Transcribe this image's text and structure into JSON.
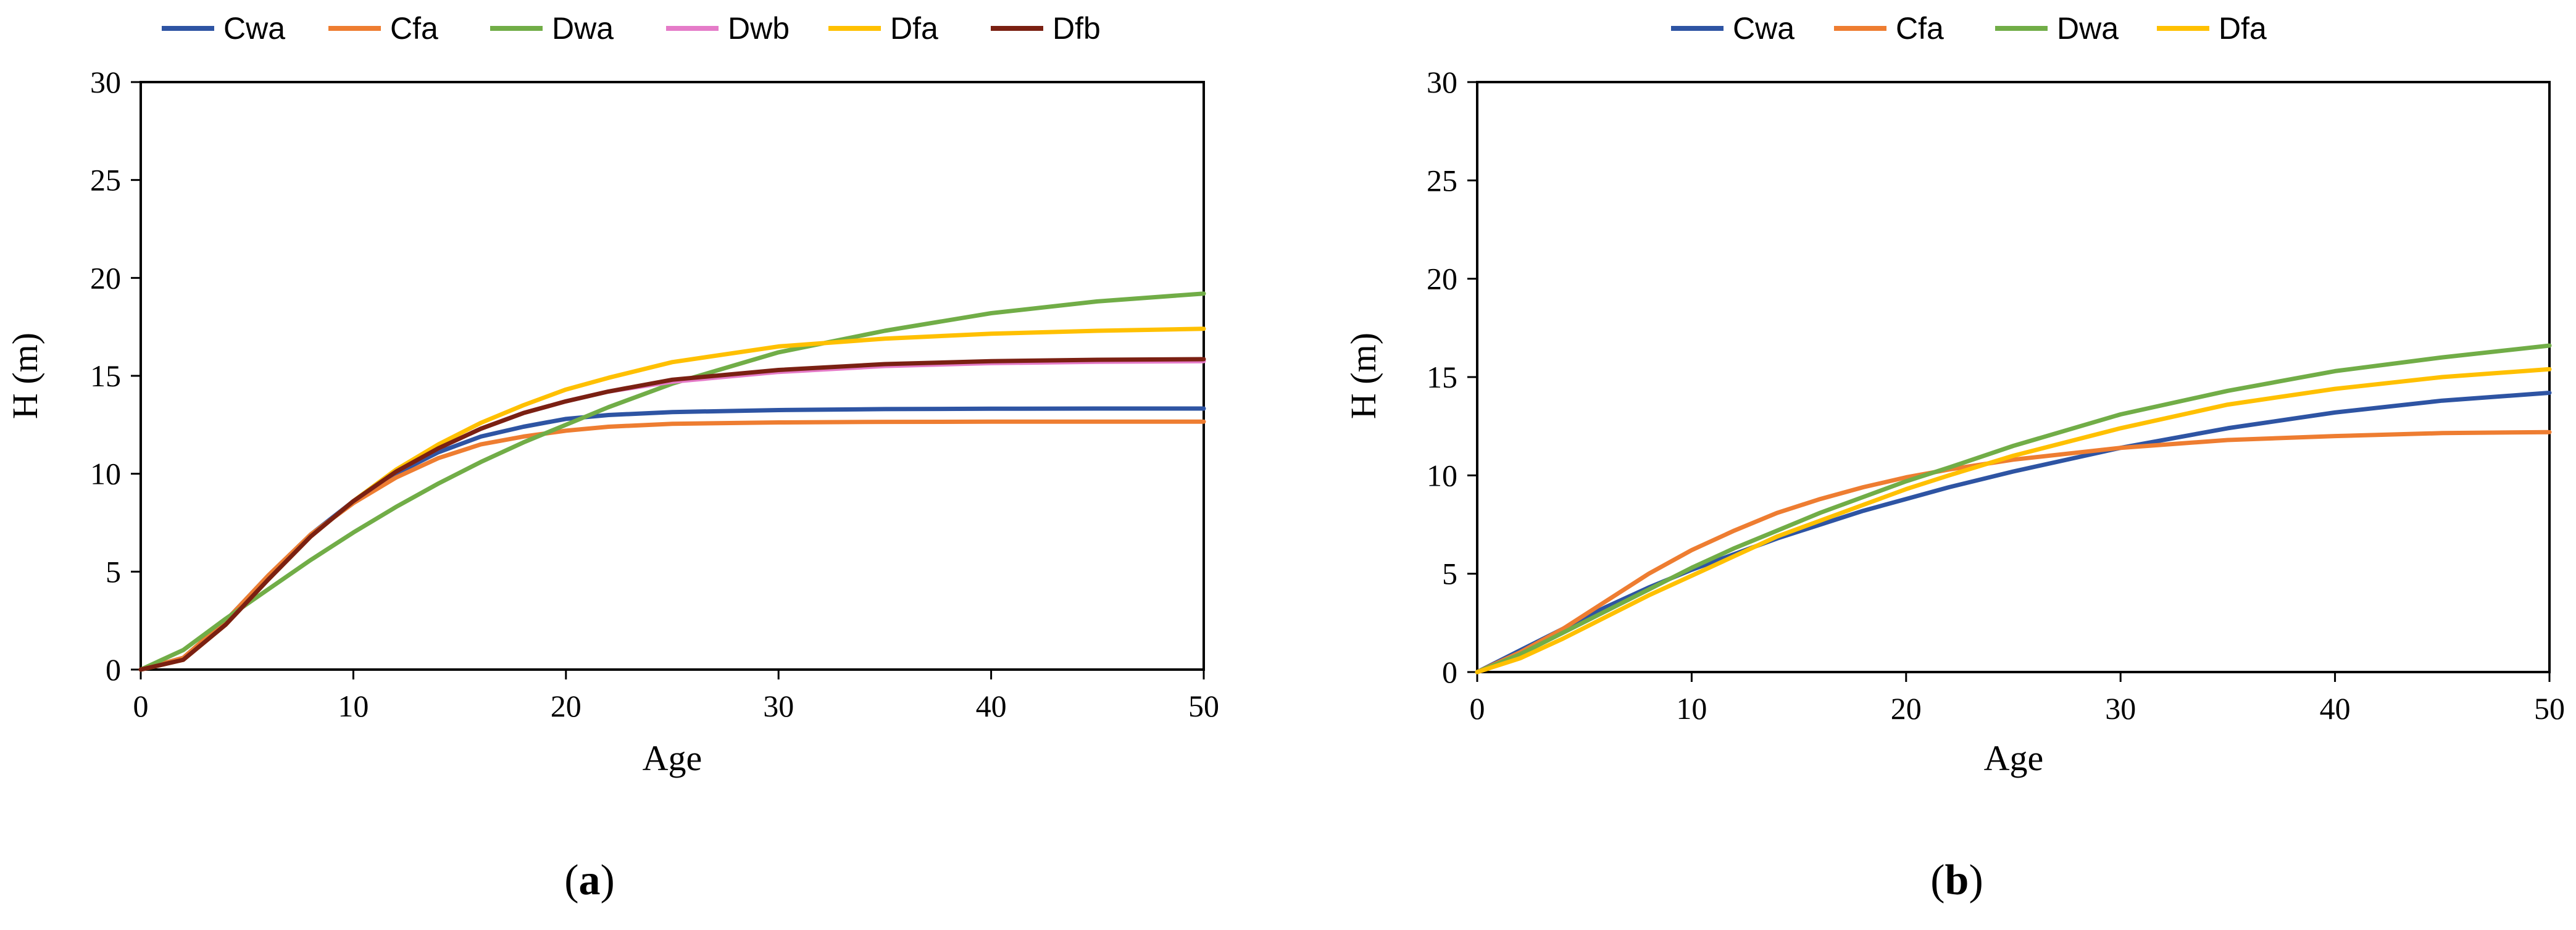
{
  "colors": {
    "Cwa": "#2E54A3",
    "Cfa": "#EE7D31",
    "Dwa": "#71AD47",
    "Dwb": "#E57BC8",
    "Dfa": "#FFC000",
    "Dfb": "#7A2012",
    "axis": "#000000"
  },
  "chart_data": [
    {
      "type": "line",
      "caption": "(a)",
      "caption_letter": "a",
      "xlabel": "Age",
      "ylabel": "H (m)",
      "xlim": [
        0,
        50
      ],
      "ylim": [
        0,
        30
      ],
      "xticks": [
        0,
        10,
        20,
        30,
        40,
        50
      ],
      "yticks": [
        0,
        5,
        10,
        15,
        20,
        25,
        30
      ],
      "legend_position": "top",
      "x": [
        0,
        2,
        4,
        6,
        8,
        10,
        12,
        14,
        16,
        18,
        20,
        22,
        25,
        30,
        35,
        40,
        45,
        50
      ],
      "series": [
        {
          "name": "Cwa",
          "values": [
            0,
            0.6,
            2.5,
            4.8,
            6.9,
            8.6,
            10.0,
            11.1,
            11.9,
            12.4,
            12.8,
            13.0,
            13.15,
            13.25,
            13.3,
            13.32,
            13.33,
            13.33
          ]
        },
        {
          "name": "Cfa",
          "values": [
            0,
            0.6,
            2.5,
            4.8,
            6.9,
            8.5,
            9.8,
            10.8,
            11.5,
            11.9,
            12.2,
            12.4,
            12.55,
            12.62,
            12.65,
            12.66,
            12.66,
            12.66
          ]
        },
        {
          "name": "Dwa",
          "values": [
            0,
            1.0,
            2.6,
            4.1,
            5.6,
            7.0,
            8.3,
            9.5,
            10.6,
            11.6,
            12.5,
            13.4,
            14.6,
            16.2,
            17.3,
            18.2,
            18.8,
            19.2
          ]
        },
        {
          "name": "Dwb",
          "values": [
            0,
            0.5,
            2.3,
            4.6,
            6.8,
            8.6,
            10.1,
            11.3,
            12.3,
            13.1,
            13.7,
            14.2,
            14.7,
            15.2,
            15.5,
            15.65,
            15.72,
            15.75
          ]
        },
        {
          "name": "Dfa",
          "values": [
            0,
            0.5,
            2.3,
            4.6,
            6.8,
            8.6,
            10.2,
            11.5,
            12.6,
            13.5,
            14.3,
            14.9,
            15.7,
            16.5,
            16.9,
            17.15,
            17.3,
            17.4
          ]
        },
        {
          "name": "Dfb",
          "values": [
            0,
            0.5,
            2.3,
            4.6,
            6.8,
            8.6,
            10.1,
            11.3,
            12.3,
            13.1,
            13.7,
            14.2,
            14.8,
            15.3,
            15.6,
            15.75,
            15.82,
            15.85
          ]
        }
      ]
    },
    {
      "type": "line",
      "caption": "(b)",
      "caption_letter": "b",
      "xlabel": "Age",
      "ylabel": "H (m)",
      "xlim": [
        0,
        50
      ],
      "ylim": [
        0,
        30
      ],
      "xticks": [
        0,
        10,
        20,
        30,
        40,
        50
      ],
      "yticks": [
        0,
        5,
        10,
        15,
        20,
        25,
        30
      ],
      "legend_position": "top",
      "x": [
        0,
        2,
        4,
        6,
        8,
        10,
        12,
        14,
        16,
        18,
        20,
        22,
        25,
        30,
        35,
        40,
        45,
        50
      ],
      "series": [
        {
          "name": "Cwa",
          "values": [
            0,
            1.1,
            2.2,
            3.3,
            4.3,
            5.2,
            6.0,
            6.8,
            7.5,
            8.2,
            8.8,
            9.4,
            10.2,
            11.4,
            12.4,
            13.2,
            13.8,
            14.2
          ]
        },
        {
          "name": "Cfa",
          "values": [
            0,
            1.0,
            2.2,
            3.6,
            5.0,
            6.2,
            7.2,
            8.1,
            8.8,
            9.4,
            9.9,
            10.3,
            10.8,
            11.4,
            11.8,
            12.0,
            12.15,
            12.2
          ]
        },
        {
          "name": "Dwa",
          "values": [
            0,
            0.9,
            2.0,
            3.1,
            4.2,
            5.3,
            6.3,
            7.2,
            8.1,
            8.9,
            9.7,
            10.4,
            11.5,
            13.1,
            14.3,
            15.3,
            16.0,
            16.6
          ]
        },
        {
          "name": "Dfa",
          "values": [
            0,
            0.7,
            1.7,
            2.8,
            3.9,
            4.9,
            5.9,
            6.9,
            7.7,
            8.5,
            9.3,
            10.0,
            11.0,
            12.4,
            13.6,
            14.4,
            15.0,
            15.4
          ]
        }
      ]
    }
  ]
}
